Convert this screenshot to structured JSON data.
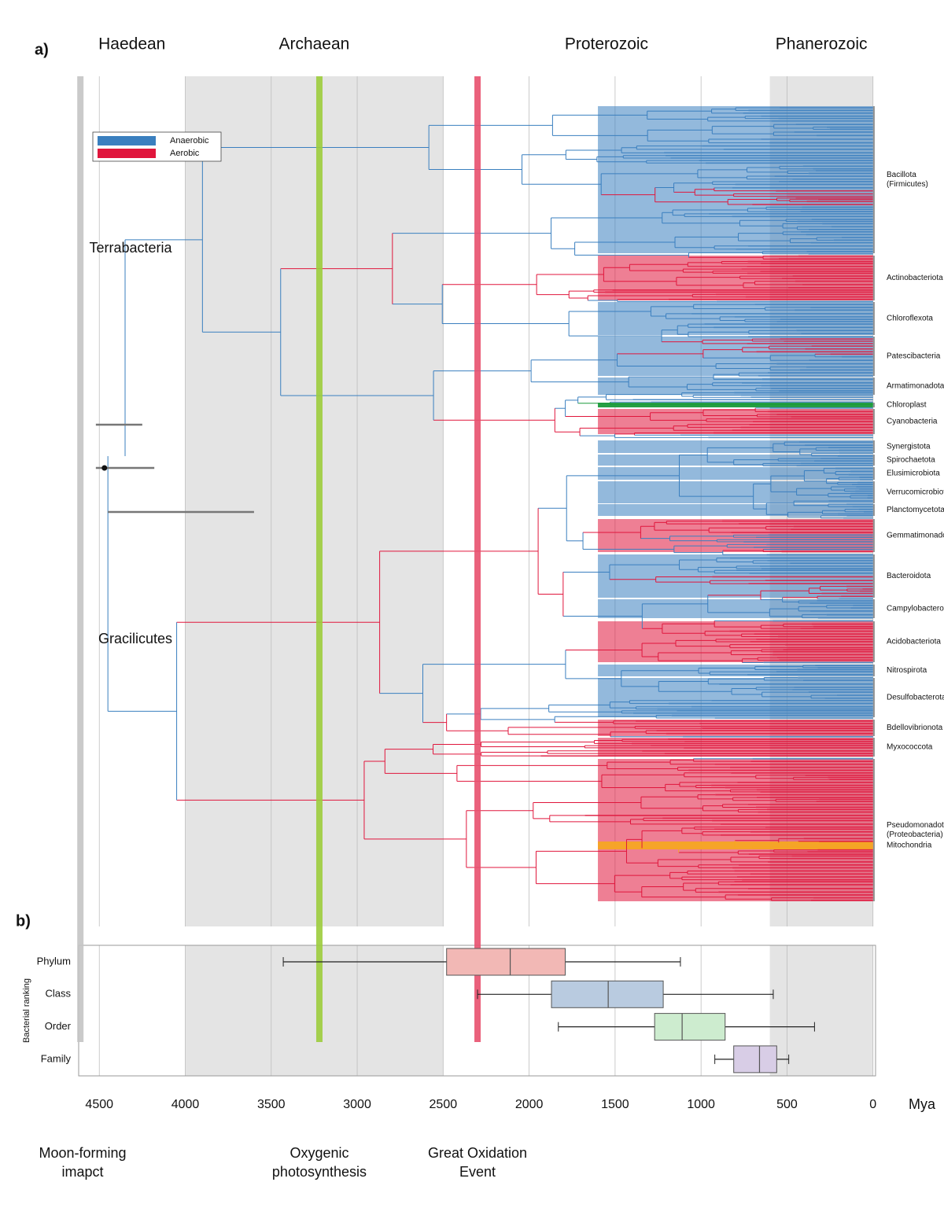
{
  "chart_data": [
    {
      "type": "tree",
      "panel": "a)",
      "eons": [
        {
          "name": "Haedean",
          "start": 4620,
          "end": 4000,
          "shaded": false
        },
        {
          "name": "Archaean",
          "start": 4000,
          "end": 2500,
          "shaded": true
        },
        {
          "name": "Proterozoic",
          "start": 2500,
          "end": 600,
          "shaded": false
        },
        {
          "name": "Phanerozoic",
          "start": 600,
          "end": 0,
          "shaded": true
        }
      ],
      "events": [
        {
          "lines": [
            "Moon-forming",
            "imapct"
          ],
          "value": 4610,
          "color": "#c4c4c4"
        },
        {
          "lines": [
            "Oxygenic",
            "photosynthesis"
          ],
          "value": 3220,
          "color": "#9ccc3c"
        },
        {
          "lines": [
            "Great Oxidation",
            "Event"
          ],
          "value": 2300,
          "color": "#e8506e"
        }
      ],
      "legend": [
        {
          "name": "Anaerobic",
          "color": "#3a7fbf"
        },
        {
          "name": "Aerobic",
          "color": "#e0163c"
        }
      ],
      "groups": [
        "Terrabacteria",
        "Gracilicutes"
      ],
      "clades": [
        {
          "lines": [
            "Bacillota",
            "(Firmicutes)"
          ]
        },
        {
          "lines": [
            "Actinobacteriota"
          ]
        },
        {
          "lines": [
            "Chloroflexota"
          ]
        },
        {
          "lines": [
            "Patescibacteria"
          ]
        },
        {
          "lines": [
            "Armatimonadota"
          ]
        },
        {
          "lines": [
            "Chloroplast"
          ]
        },
        {
          "lines": [
            "Cyanobacteria"
          ]
        },
        {
          "lines": [
            "Synergistota"
          ]
        },
        {
          "lines": [
            "Spirochaetota"
          ]
        },
        {
          "lines": [
            "Elusimicrobiota"
          ]
        },
        {
          "lines": [
            "Verrucomicrobiota"
          ]
        },
        {
          "lines": [
            "Planctomycetota"
          ]
        },
        {
          "lines": [
            "Gemmatimonadota"
          ]
        },
        {
          "lines": [
            "Bacteroidota"
          ]
        },
        {
          "lines": [
            "Campylobacterota"
          ]
        },
        {
          "lines": [
            "Acidobacteriota"
          ]
        },
        {
          "lines": [
            "Nitrospirota"
          ]
        },
        {
          "lines": [
            "Desulfobacterota"
          ]
        },
        {
          "lines": [
            "Bdellovibrionota"
          ]
        },
        {
          "lines": [
            "Myxococcota"
          ]
        },
        {
          "lines": [
            "Pseudomonadota",
            "(Proteobacteria)"
          ]
        },
        {
          "lines": [
            "Mitochondria"
          ]
        }
      ]
    },
    {
      "type": "box",
      "panel": "b)",
      "ylabel": "Bacterial ranking",
      "xlabel": "Mya",
      "xlim": [
        4620,
        -15
      ],
      "xticks": [
        4500,
        4000,
        3500,
        3000,
        2500,
        2000,
        1500,
        1000,
        500,
        0
      ],
      "categories": [
        "Phylum",
        "Class",
        "Order",
        "Family"
      ],
      "colors": [
        "#f2b8b5",
        "#b9cbe0",
        "#cdeccf",
        "#d8cde6"
      ],
      "whisker_low": [
        3430,
        2300,
        1830,
        920
      ],
      "q1": [
        2480,
        1870,
        1270,
        810
      ],
      "median": [
        2110,
        1540,
        1110,
        660
      ],
      "q3": [
        1790,
        1220,
        860,
        560
      ],
      "whisker_high": [
        1120,
        580,
        340,
        490
      ]
    }
  ]
}
